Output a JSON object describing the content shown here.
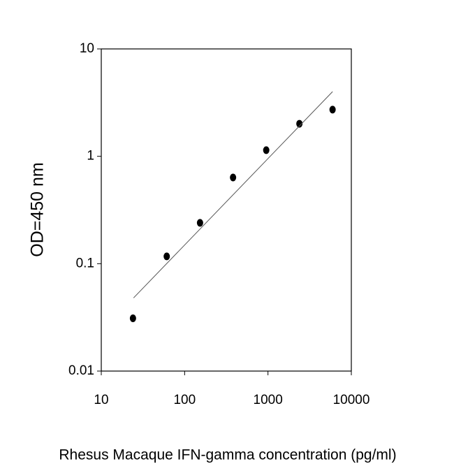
{
  "chart_data": {
    "type": "scatter",
    "x_label": "Rhesus Macaque IFN-gamma concentration (pg/ml)",
    "y_label": "OD=450 nm",
    "x_log": true,
    "y_log": true,
    "xlim": [
      10,
      10000
    ],
    "ylim": [
      0.01,
      10
    ],
    "xticks": [
      10,
      100,
      1000,
      10000
    ],
    "yticks": [
      0.01,
      0.1,
      1,
      10
    ],
    "series": [
      {
        "kind": "points",
        "color": "#000000",
        "x": [
          24,
          61,
          153,
          381,
          953,
          2383,
          5956
        ],
        "values": [
          0.031,
          0.117,
          0.24,
          0.635,
          1.14,
          2.01,
          2.72
        ]
      },
      {
        "kind": "line",
        "color": "#555555",
        "x": [
          24.4,
          5956
        ],
        "values": [
          0.048,
          4.0
        ]
      }
    ]
  }
}
